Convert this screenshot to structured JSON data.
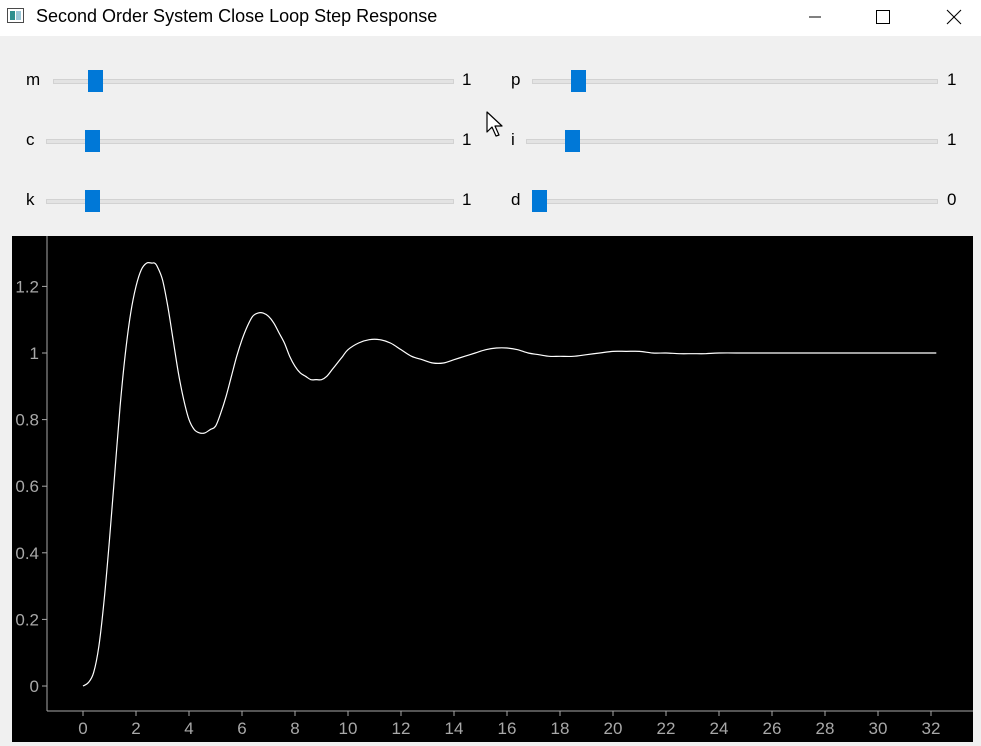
{
  "window": {
    "title": "Second Order System Close Loop Step Response"
  },
  "controls": {
    "left": [
      {
        "label": "m",
        "value": "1",
        "position_fraction": 0.1
      },
      {
        "label": "c",
        "value": "1",
        "position_fraction": 0.1
      },
      {
        "label": "k",
        "value": "1",
        "position_fraction": 0.1
      }
    ],
    "right": [
      {
        "label": "p",
        "value": "1",
        "position_fraction": 0.1
      },
      {
        "label": "i",
        "value": "1",
        "position_fraction": 0.1
      },
      {
        "label": "d",
        "value": "0",
        "position_fraction": 0.0
      }
    ]
  },
  "icons": {
    "minimize": "minimize-icon",
    "maximize": "maximize-icon",
    "close": "close-icon",
    "cursor": "pointer-cursor-icon"
  },
  "colors": {
    "slider_handle": "#0078d7",
    "plot_background": "#000000",
    "plot_line": "#ffffff",
    "axis_labels": "#a8a8a8"
  },
  "chart_data": {
    "type": "line",
    "title": "",
    "xlabel": "",
    "ylabel": "",
    "xlim": [
      -1.4,
      33.5
    ],
    "ylim": [
      -0.08,
      1.33
    ],
    "xticks": [
      0,
      2,
      4,
      6,
      8,
      10,
      12,
      14,
      16,
      18,
      20,
      22,
      24,
      26,
      28,
      30,
      32
    ],
    "xtick_labels": [
      "0",
      "2",
      "4",
      "6",
      "8",
      "10",
      "12",
      "14",
      "16",
      "18",
      "20",
      "22",
      "24",
      "26",
      "28",
      "30",
      "32"
    ],
    "yticks": [
      0,
      0.2,
      0.4,
      0.6,
      0.8,
      1,
      1.2
    ],
    "ytick_labels": [
      "0",
      "0.2",
      "0.4",
      "0.6",
      "0.8",
      "1",
      "1.2"
    ],
    "grid": false,
    "series": [
      {
        "x": [
          0,
          0.2,
          0.4,
          0.6,
          0.8,
          1.0,
          1.2,
          1.4,
          1.6,
          1.8,
          2.0,
          2.2,
          2.4,
          2.6,
          2.7,
          2.8,
          3.0,
          3.2,
          3.4,
          3.6,
          3.8,
          4.0,
          4.2,
          4.4,
          4.6,
          4.8,
          5.0,
          5.2,
          5.4,
          5.6,
          5.8,
          6.0,
          6.2,
          6.4,
          6.6,
          6.8,
          7.0,
          7.2,
          7.4,
          7.6,
          7.8,
          8.0,
          8.2,
          8.4,
          8.6,
          8.8,
          9.0,
          9.2,
          9.4,
          9.6,
          9.8,
          10.0,
          10.4,
          10.8,
          11.2,
          11.6,
          12.0,
          12.4,
          12.8,
          13.2,
          13.6,
          14.0,
          14.4,
          14.8,
          15.2,
          15.6,
          16.0,
          16.4,
          16.8,
          17.2,
          17.6,
          18.0,
          18.5,
          19.0,
          19.5,
          20.0,
          20.5,
          21.0,
          21.5,
          22.0,
          22.5,
          23.0,
          23.5,
          24.0,
          25.0,
          26.0,
          27.0,
          28.0,
          29.0,
          30.0,
          31.0,
          32.0,
          32.2
        ],
        "y": [
          0,
          0.01,
          0.04,
          0.12,
          0.26,
          0.44,
          0.64,
          0.84,
          1.0,
          1.12,
          1.2,
          1.25,
          1.27,
          1.27,
          1.27,
          1.26,
          1.22,
          1.14,
          1.04,
          0.94,
          0.86,
          0.8,
          0.77,
          0.76,
          0.76,
          0.77,
          0.78,
          0.82,
          0.87,
          0.93,
          0.99,
          1.04,
          1.08,
          1.11,
          1.12,
          1.12,
          1.11,
          1.09,
          1.06,
          1.03,
          0.99,
          0.96,
          0.94,
          0.93,
          0.92,
          0.92,
          0.92,
          0.93,
          0.95,
          0.97,
          0.99,
          1.01,
          1.03,
          1.04,
          1.04,
          1.03,
          1.01,
          0.99,
          0.98,
          0.97,
          0.97,
          0.98,
          0.99,
          1.0,
          1.01,
          1.015,
          1.015,
          1.01,
          1.0,
          0.995,
          0.99,
          0.99,
          0.99,
          0.995,
          1.0,
          1.005,
          1.005,
          1.005,
          1.0,
          1.0,
          0.998,
          0.998,
          0.998,
          1.0,
          1.0,
          1.0,
          1.0,
          1.0,
          1.0,
          1.0,
          1.0,
          1.0,
          1.0
        ]
      }
    ]
  }
}
